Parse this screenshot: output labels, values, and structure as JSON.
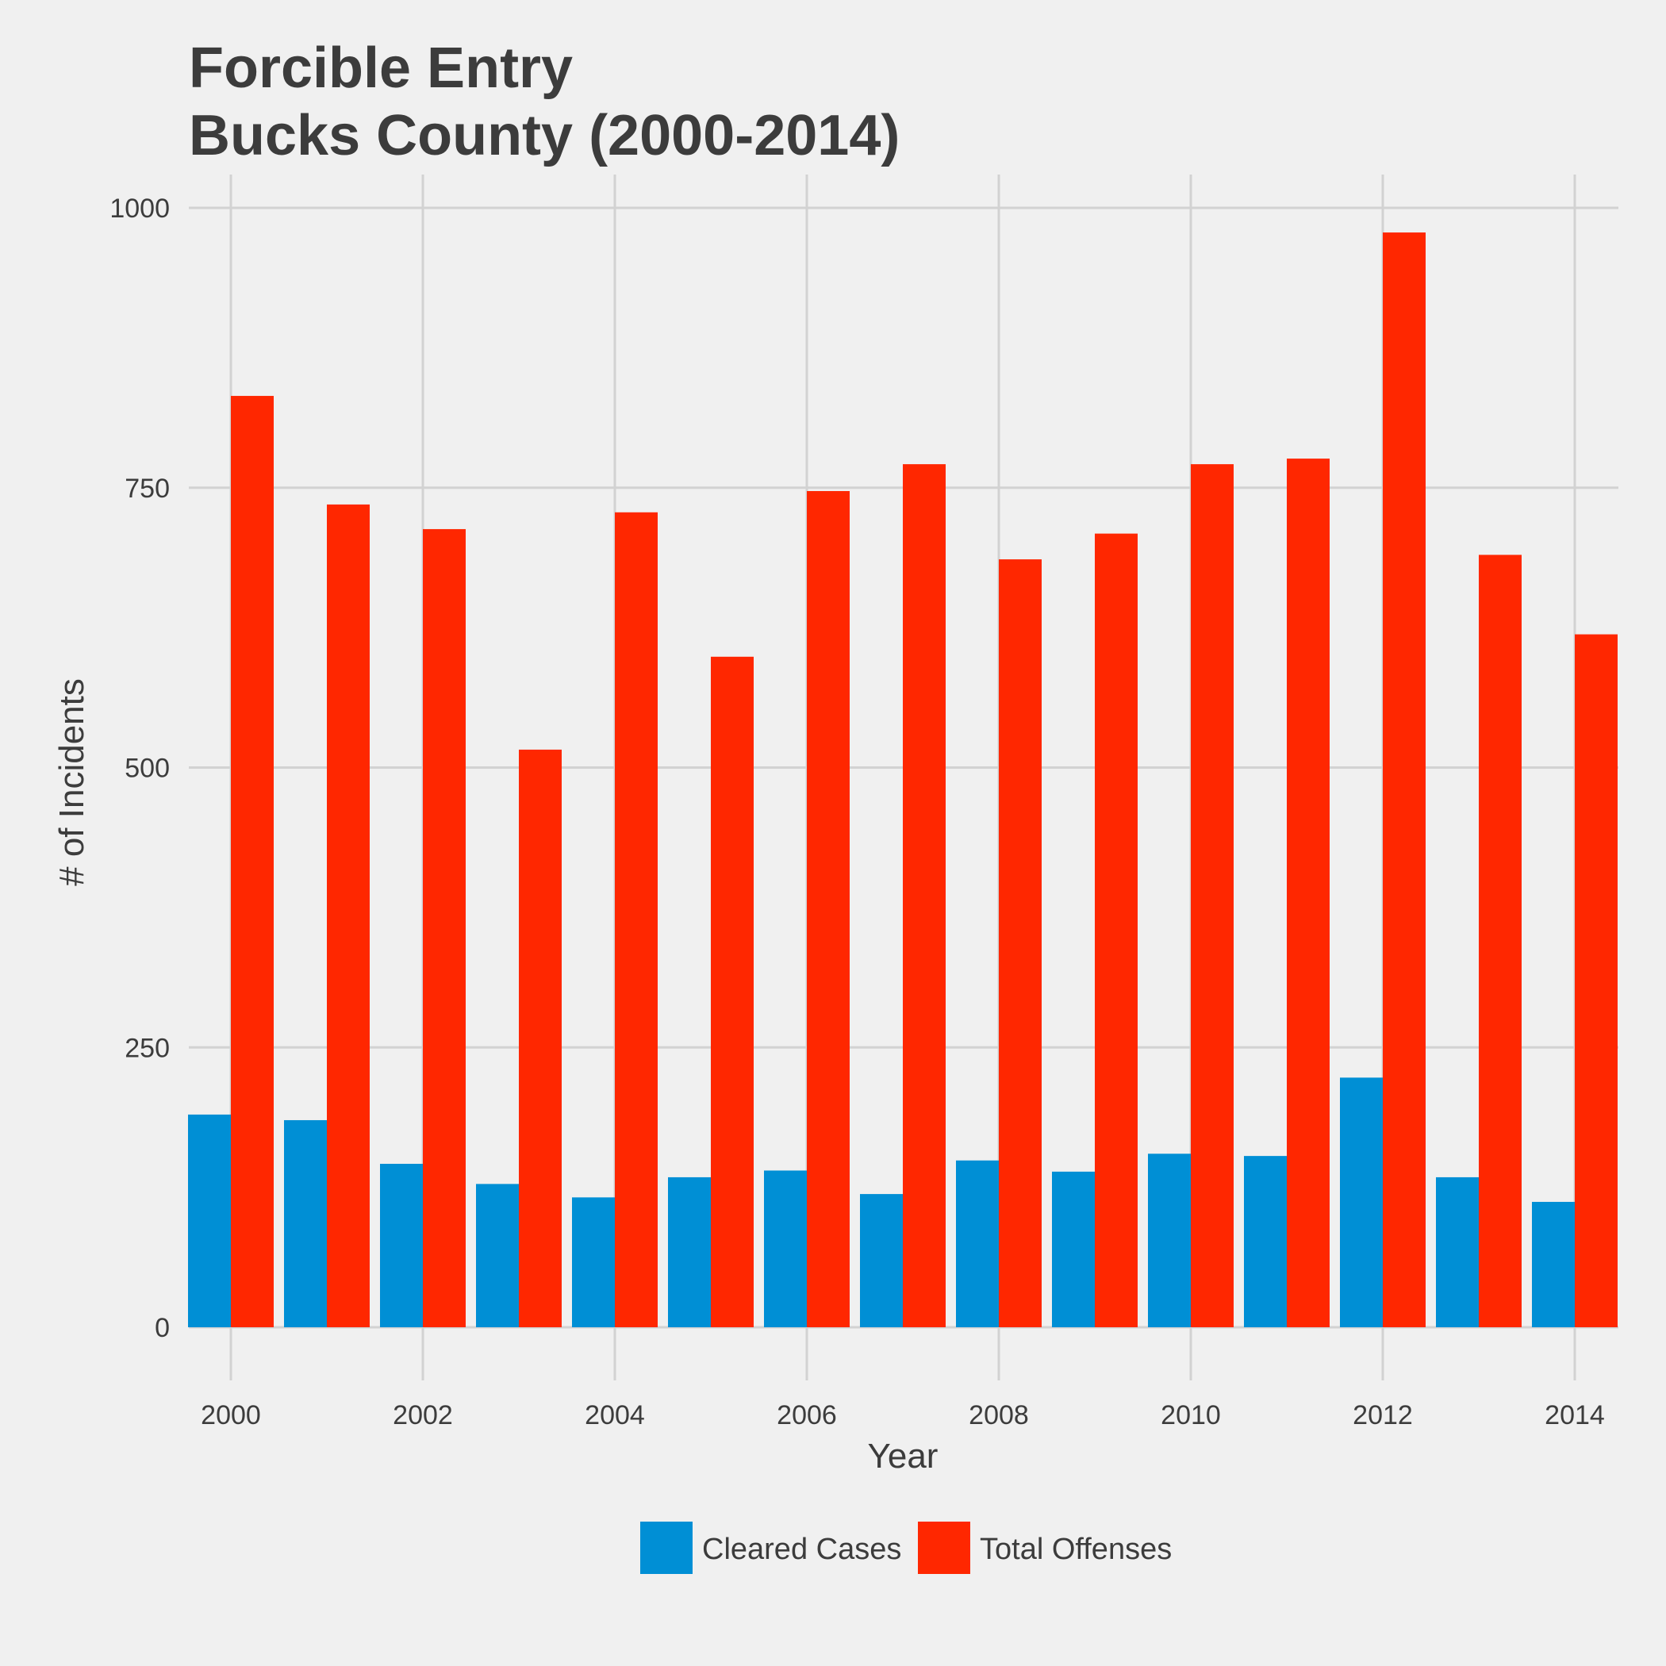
{
  "chart_data": {
    "type": "bar",
    "title_lines": [
      "Forcible Entry",
      "Bucks County (2000-2014)"
    ],
    "xlabel": "Year",
    "ylabel": "# of Incidents",
    "categories": [
      2000,
      2001,
      2002,
      2003,
      2004,
      2005,
      2006,
      2007,
      2008,
      2009,
      2010,
      2011,
      2012,
      2013,
      2014
    ],
    "x_ticks": [
      "2000",
      "2002",
      "2004",
      "2006",
      "2008",
      "2010",
      "2012",
      "2014"
    ],
    "y_ticks": [
      "0",
      "250",
      "500",
      "750",
      "1000"
    ],
    "ylim": [
      -40,
      1030
    ],
    "grid": true,
    "legend_position": "bottom",
    "series": [
      {
        "name": "Cleared Cases",
        "color": "#008fd5",
        "values": [
          190,
          185,
          146,
          128,
          116,
          134,
          140,
          119,
          149,
          139,
          155,
          153,
          223,
          134,
          112
        ]
      },
      {
        "name": "Total Offenses",
        "color": "#ff2700",
        "values": [
          832,
          735,
          713,
          516,
          728,
          599,
          747,
          771,
          686,
          709,
          771,
          776,
          978,
          690,
          619
        ]
      }
    ]
  }
}
